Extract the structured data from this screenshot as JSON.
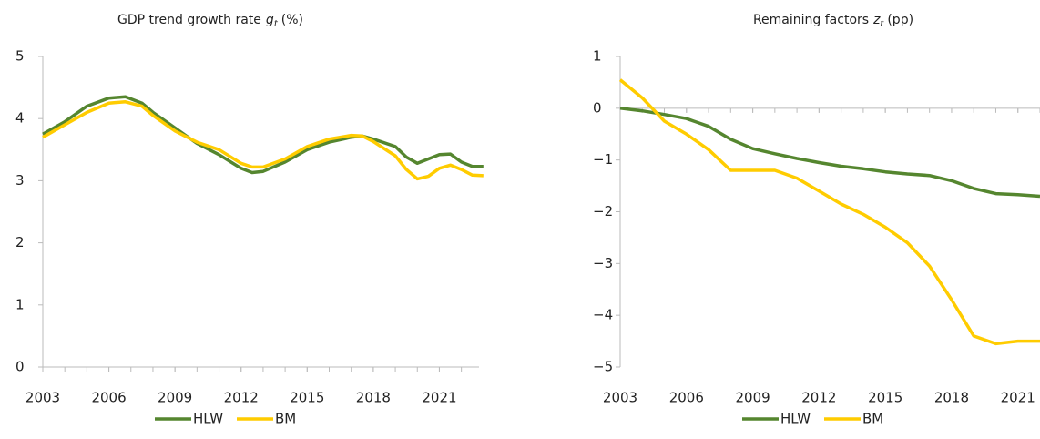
{
  "chart_data": [
    {
      "type": "line",
      "title": "GDP trend growth rate",
      "title_symbol": "g",
      "title_subscript": "t",
      "title_unit": "(%)",
      "x": [
        2003,
        2004,
        2005,
        2006,
        2006.75,
        2007.5,
        2008,
        2009,
        2010,
        2011,
        2012,
        2012.5,
        2013,
        2014,
        2015,
        2016,
        2017,
        2017.5,
        2018,
        2019,
        2019.5,
        2020,
        2020.5,
        2021,
        2021.5,
        2022,
        2022.5,
        2023
      ],
      "series": [
        {
          "name": "HLW",
          "color": "#55862f",
          "values": [
            3.75,
            3.95,
            4.2,
            4.33,
            4.35,
            4.25,
            4.1,
            3.85,
            3.6,
            3.42,
            3.2,
            3.13,
            3.15,
            3.3,
            3.5,
            3.62,
            3.7,
            3.72,
            3.67,
            3.55,
            3.38,
            3.28,
            3.35,
            3.42,
            3.43,
            3.3,
            3.23,
            3.23
          ]
        },
        {
          "name": "BM",
          "color": "#ffcc00",
          "values": [
            3.7,
            3.9,
            4.1,
            4.25,
            4.27,
            4.2,
            4.05,
            3.8,
            3.62,
            3.5,
            3.28,
            3.22,
            3.22,
            3.35,
            3.55,
            3.67,
            3.73,
            3.72,
            3.63,
            3.4,
            3.18,
            3.03,
            3.07,
            3.2,
            3.25,
            3.18,
            3.09,
            3.08
          ]
        }
      ],
      "xlim": [
        2003,
        2022.8
      ],
      "xticks": [
        2003,
        2006,
        2009,
        2012,
        2015,
        2018,
        2021
      ],
      "ylim": [
        0,
        5
      ],
      "yticks": [
        0,
        1,
        2,
        3,
        4,
        5
      ]
    },
    {
      "type": "line",
      "title": "Remaining factors",
      "title_symbol": "z",
      "title_subscript": "t",
      "title_unit": "(pp)",
      "x": [
        2003,
        2004,
        2005,
        2006,
        2007,
        2008,
        2009,
        2010,
        2011,
        2012,
        2013,
        2014,
        2015,
        2016,
        2017,
        2018,
        2019,
        2020,
        2021,
        2022
      ],
      "series": [
        {
          "name": "HLW",
          "color": "#55862f",
          "values": [
            0,
            -0.05,
            -0.12,
            -0.2,
            -0.35,
            -0.6,
            -0.78,
            -0.88,
            -0.97,
            -1.05,
            -1.12,
            -1.17,
            -1.23,
            -1.27,
            -1.3,
            -1.4,
            -1.55,
            -1.65,
            -1.67,
            -1.7
          ]
        },
        {
          "name": "BM",
          "color": "#ffcc00",
          "values": [
            0.55,
            0.2,
            -0.25,
            -0.5,
            -0.8,
            -1.2,
            -1.2,
            -1.2,
            -1.35,
            -1.6,
            -1.85,
            -2.05,
            -2.3,
            -2.6,
            -3.05,
            -3.7,
            -4.4,
            -4.55,
            -4.5,
            -4.5
          ]
        }
      ],
      "xlim": [
        2003,
        2022
      ],
      "xticks": [
        2003,
        2006,
        2009,
        2012,
        2015,
        2018,
        2021
      ],
      "ylim": [
        -5,
        1
      ],
      "yticks": [
        {
          "value": -5,
          "label": "−5"
        },
        {
          "value": -4,
          "label": "−4"
        },
        {
          "value": -3,
          "label": "−3"
        },
        {
          "value": -2,
          "label": "−2"
        },
        {
          "value": -1,
          "label": "−1"
        },
        0,
        1
      ]
    }
  ]
}
